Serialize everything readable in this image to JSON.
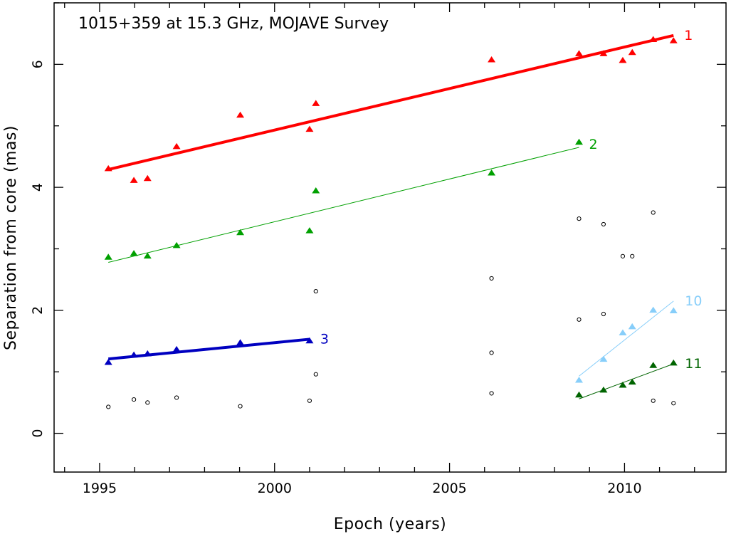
{
  "chart_data": {
    "type": "scatter",
    "title": "1015+359 at 15.3 GHz, MOJAVE Survey",
    "xlabel": "Epoch (years)",
    "ylabel": "Separation from core (mas)",
    "xlim": [
      1993.7,
      2012.9
    ],
    "ylim": [
      -0.63,
      7.0
    ],
    "x_ticks": [
      1995,
      2000,
      2005,
      2010
    ],
    "y_ticks": [
      0,
      2,
      4,
      6
    ],
    "grid": false,
    "series": [
      {
        "name": "1",
        "color": "#ff0000",
        "marker": "triangle",
        "points": [
          [
            1995.25,
            4.3
          ],
          [
            1995.98,
            4.11
          ],
          [
            1996.37,
            4.14
          ],
          [
            1997.2,
            4.66
          ],
          [
            1999.02,
            5.17
          ],
          [
            2001.0,
            4.94
          ],
          [
            2001.18,
            5.36
          ],
          [
            2006.2,
            6.07
          ],
          [
            2008.7,
            6.17
          ],
          [
            2009.4,
            6.17
          ],
          [
            2009.95,
            6.06
          ],
          [
            2010.22,
            6.19
          ],
          [
            2010.82,
            6.4
          ],
          [
            2011.4,
            6.38
          ]
        ],
        "fit": [
          [
            1995.25,
            4.29
          ],
          [
            2011.4,
            6.47
          ]
        ],
        "fit_width": 4
      },
      {
        "name": "2",
        "color": "#00a000",
        "marker": "triangle",
        "points": [
          [
            1995.25,
            2.86
          ],
          [
            1995.98,
            2.92
          ],
          [
            1996.37,
            2.88
          ],
          [
            1997.2,
            3.05
          ],
          [
            1999.02,
            3.26
          ],
          [
            2001.0,
            3.29
          ],
          [
            2001.18,
            3.94
          ],
          [
            2006.2,
            4.23
          ],
          [
            2008.7,
            4.73
          ]
        ],
        "fit": [
          [
            1995.25,
            2.78
          ],
          [
            2008.7,
            4.65
          ]
        ],
        "fit_width": 1
      },
      {
        "name": "3",
        "color": "#0000c0",
        "marker": "triangle",
        "points": [
          [
            1995.25,
            1.15
          ],
          [
            1995.98,
            1.27
          ],
          [
            1996.37,
            1.29
          ],
          [
            1997.2,
            1.36
          ],
          [
            1999.02,
            1.47
          ],
          [
            2001.0,
            1.5
          ]
        ],
        "fit": [
          [
            1995.25,
            1.21
          ],
          [
            2001.0,
            1.53
          ]
        ],
        "fit_width": 4
      },
      {
        "name": "10",
        "color": "#87cefa",
        "marker": "triangle",
        "points": [
          [
            2008.7,
            0.86
          ],
          [
            2009.4,
            1.2
          ],
          [
            2009.95,
            1.63
          ],
          [
            2010.22,
            1.73
          ],
          [
            2010.82,
            2.0
          ],
          [
            2011.4,
            1.99
          ]
        ],
        "fit": [
          [
            2008.7,
            0.93
          ],
          [
            2011.4,
            2.15
          ]
        ],
        "fit_width": 1
      },
      {
        "name": "11",
        "color": "#006400",
        "marker": "triangle",
        "points": [
          [
            2008.7,
            0.62
          ],
          [
            2009.4,
            0.7
          ],
          [
            2009.95,
            0.78
          ],
          [
            2010.22,
            0.83
          ],
          [
            2010.82,
            1.1
          ],
          [
            2011.4,
            1.14
          ]
        ],
        "fit": [
          [
            2008.7,
            0.56
          ],
          [
            2011.4,
            1.13
          ]
        ],
        "fit_width": 1
      },
      {
        "name": "",
        "color": "#000000",
        "marker": "circle",
        "points": [
          [
            1995.25,
            0.43
          ],
          [
            1995.98,
            0.55
          ],
          [
            1996.37,
            0.5
          ],
          [
            1997.2,
            0.58
          ],
          [
            1999.02,
            0.44
          ],
          [
            2001.0,
            0.53
          ],
          [
            2001.18,
            0.96
          ],
          [
            2001.18,
            2.31
          ],
          [
            2006.2,
            0.65
          ],
          [
            2006.2,
            1.31
          ],
          [
            2006.2,
            2.52
          ],
          [
            2008.7,
            1.85
          ],
          [
            2008.7,
            3.49
          ],
          [
            2009.4,
            1.94
          ],
          [
            2009.4,
            3.4
          ],
          [
            2009.95,
            2.88
          ],
          [
            2010.22,
            2.88
          ],
          [
            2010.82,
            0.53
          ],
          [
            2010.82,
            3.59
          ],
          [
            2011.4,
            0.49
          ]
        ]
      }
    ]
  }
}
